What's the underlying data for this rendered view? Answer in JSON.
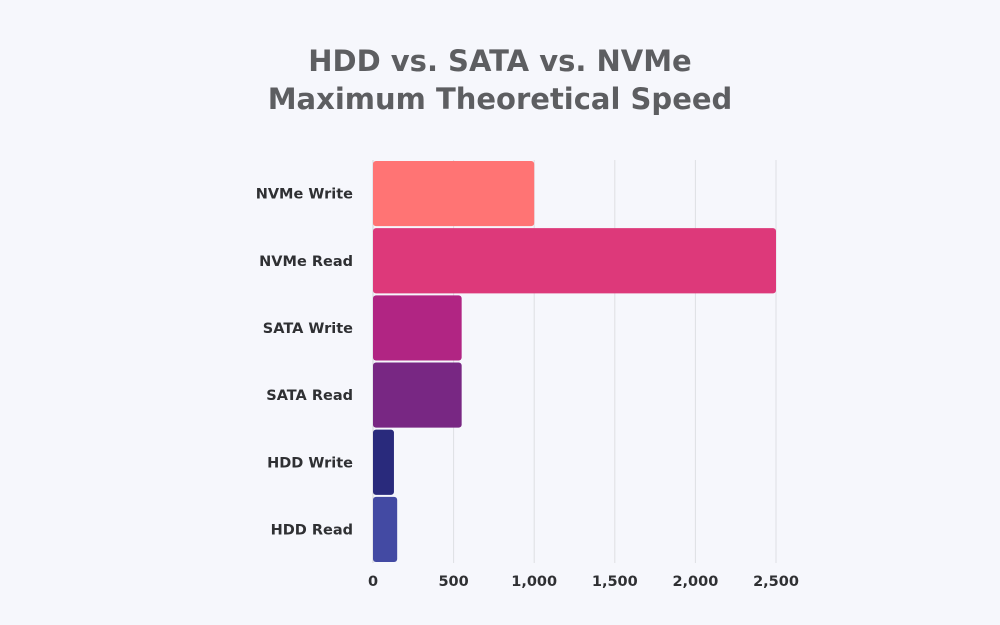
{
  "chart_data": {
    "type": "bar",
    "orientation": "horizontal",
    "title": "HDD vs. SATA vs. NVMe",
    "subtitle": "Maximum Theoretical Speed",
    "categories": [
      "NVMe Write",
      "NVMe Read",
      "SATA Write",
      "SATA Read",
      "HDD Write",
      "HDD Read"
    ],
    "values": [
      1000,
      2500,
      550,
      550,
      130,
      150
    ],
    "colors": [
      "#ff7474",
      "#dd397a",
      "#b12583",
      "#782783",
      "#292a7c",
      "#434aa3"
    ],
    "xticks": [
      "0",
      "500",
      "1,000",
      "1,500",
      "2,000",
      "2,500"
    ],
    "xlim": [
      0,
      2500
    ],
    "grid": "vertical",
    "legend": "none"
  }
}
